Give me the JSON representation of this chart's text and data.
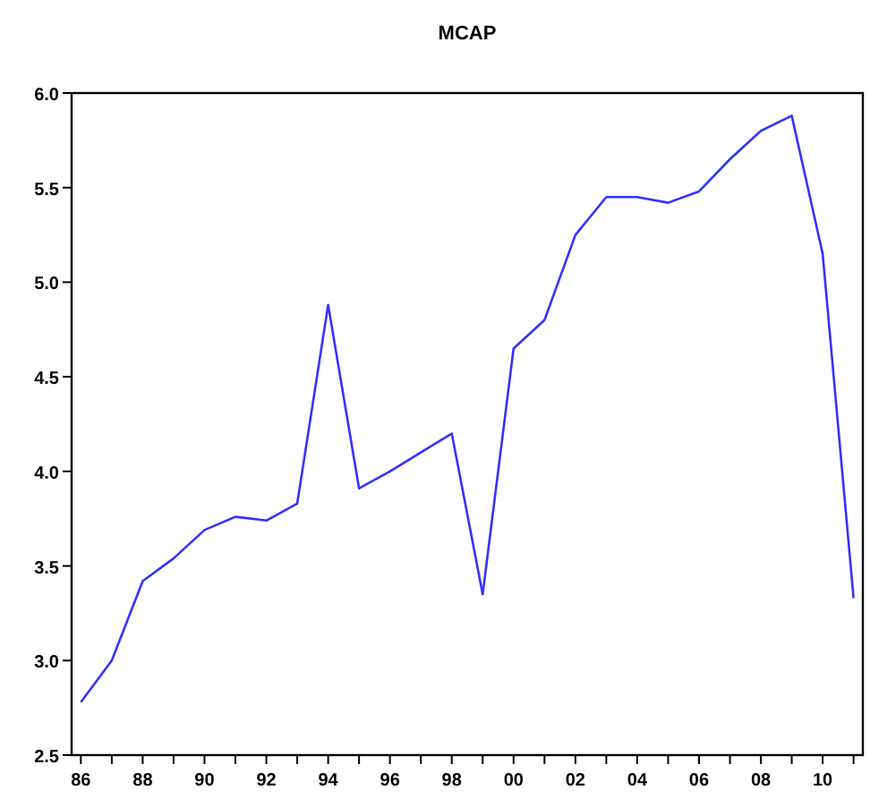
{
  "chart_data": {
    "type": "line",
    "title": "MCAP",
    "x": [
      1986,
      1987,
      1988,
      1989,
      1990,
      1991,
      1992,
      1993,
      1994,
      1995,
      1996,
      1997,
      1998,
      1999,
      2000,
      2001,
      2002,
      2003,
      2004,
      2005,
      2006,
      2007,
      2008,
      2009,
      2010,
      2011
    ],
    "series": [
      {
        "color": "#3333ff",
        "values": [
          2.78,
          3.0,
          3.42,
          3.54,
          3.69,
          3.76,
          3.74,
          3.83,
          4.88,
          3.91,
          4.0,
          4.1,
          4.2,
          3.35,
          4.65,
          4.8,
          5.25,
          5.45,
          5.45,
          5.42,
          5.48,
          5.65,
          5.8,
          5.88,
          5.15,
          3.33
        ]
      }
    ],
    "xlim": [
      1985.7,
      2011.3
    ],
    "xticks": [
      {
        "value": 1986,
        "label": "86"
      },
      {
        "value": 1987,
        "label": null
      },
      {
        "value": 1988,
        "label": "88"
      },
      {
        "value": 1989,
        "label": null
      },
      {
        "value": 1990,
        "label": "90"
      },
      {
        "value": 1991,
        "label": null
      },
      {
        "value": 1992,
        "label": "92"
      },
      {
        "value": 1993,
        "label": null
      },
      {
        "value": 1994,
        "label": "94"
      },
      {
        "value": 1995,
        "label": null
      },
      {
        "value": 1996,
        "label": "96"
      },
      {
        "value": 1997,
        "label": null
      },
      {
        "value": 1998,
        "label": "98"
      },
      {
        "value": 1999,
        "label": null
      },
      {
        "value": 2000,
        "label": "00"
      },
      {
        "value": 2001,
        "label": null
      },
      {
        "value": 2002,
        "label": "02"
      },
      {
        "value": 2003,
        "label": null
      },
      {
        "value": 2004,
        "label": "04"
      },
      {
        "value": 2005,
        "label": null
      },
      {
        "value": 2006,
        "label": "06"
      },
      {
        "value": 2007,
        "label": null
      },
      {
        "value": 2008,
        "label": "08"
      },
      {
        "value": 2009,
        "label": null
      },
      {
        "value": 2010,
        "label": "10"
      },
      {
        "value": 2011,
        "label": null
      }
    ],
    "ylim": [
      2.5,
      6.0
    ],
    "yticks": [
      2.5,
      {
        "value": 3.0,
        "label": "3.0"
      },
      3.5,
      {
        "value": 4.0,
        "label": "4.0"
      },
      4.5,
      {
        "value": 5.0,
        "label": "5.0"
      },
      5.5,
      {
        "value": 6.0,
        "label": "6.0"
      }
    ],
    "grid": false,
    "marker": "none",
    "line_style": "solid"
  }
}
